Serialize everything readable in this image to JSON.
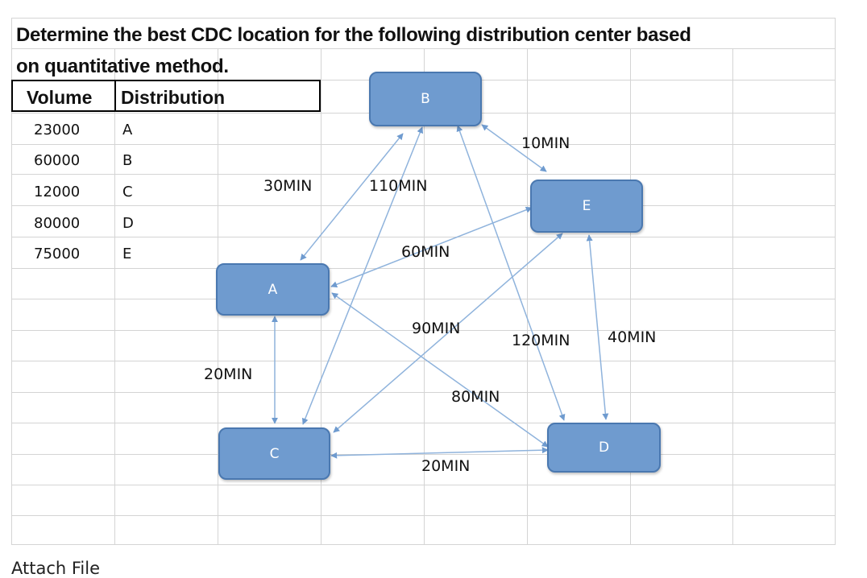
{
  "question": {
    "line1": "Determine the best CDC location for the following distribution center based",
    "line2": "on quantitative method."
  },
  "table": {
    "headers": [
      "Volume",
      "Distribution"
    ],
    "rows": [
      {
        "volume": "23000",
        "distribution": "A"
      },
      {
        "volume": "60000",
        "distribution": "B"
      },
      {
        "volume": "12000",
        "distribution": "C"
      },
      {
        "volume": "80000",
        "distribution": "D"
      },
      {
        "volume": "75000",
        "distribution": "E"
      }
    ]
  },
  "diagram": {
    "nodes": [
      "B",
      "E",
      "A",
      "C",
      "D"
    ],
    "edges": [
      {
        "from": "B",
        "to": "E",
        "label": "10MIN"
      },
      {
        "from": "B",
        "to": "A",
        "label": "30MIN"
      },
      {
        "from": "B",
        "to": "C",
        "label": "110MIN"
      },
      {
        "from": "E",
        "to": "A",
        "label": "60MIN"
      },
      {
        "from": "E",
        "to": "C",
        "label": "90MIN"
      },
      {
        "from": "B",
        "to": "D",
        "label": "120MIN"
      },
      {
        "from": "E",
        "to": "D",
        "label": "40MIN"
      },
      {
        "from": "A",
        "to": "C",
        "label": "20MIN"
      },
      {
        "from": "A",
        "to": "D",
        "label": "80MIN"
      },
      {
        "from": "C",
        "to": "D",
        "label": "20MIN"
      }
    ]
  },
  "footer": {
    "attach_label": "Attach File"
  }
}
